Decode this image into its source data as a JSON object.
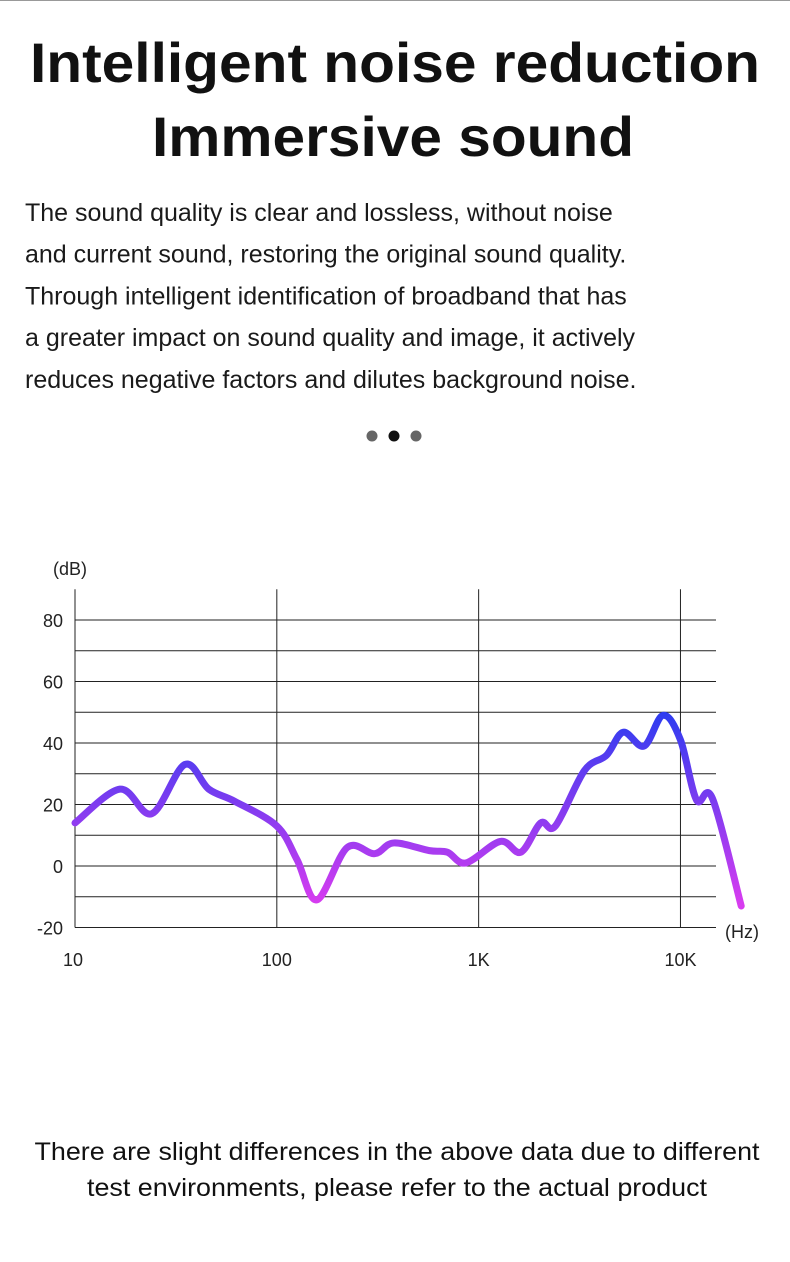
{
  "header": {
    "title_lines": [
      "Intelligent noise reduction",
      "Immersive sound"
    ],
    "paragraph_lines": [
      "The sound quality is clear and lossless, without noise",
      "and current sound, restoring the original sound quality.",
      "Through intelligent identification of broadband that has",
      "a greater impact on sound quality and image, it actively",
      "reduces negative factors and dilutes background noise."
    ]
  },
  "chart_data": {
    "type": "line",
    "y_label": "(dB)",
    "x_label": "(Hz)",
    "xscale": "log",
    "x": [
      10,
      16.7,
      24,
      35,
      46,
      62,
      100,
      126,
      158,
      223,
      305,
      380,
      570,
      700,
      865,
      1280,
      1620,
      2030,
      2400,
      3340,
      4300,
      5200,
      6600,
      8200,
      10000,
      12000,
      14400,
      20000
    ],
    "series": [
      {
        "colors": [
          "#2b3cf0",
          "#d83cf0"
        ],
        "values": [
          14,
          25,
          17,
          33,
          25,
          21,
          13,
          2,
          -11,
          6,
          4,
          7.5,
          5,
          4.5,
          1,
          8,
          4.5,
          14,
          13,
          31,
          36,
          43.5,
          39,
          49,
          41,
          21.5,
          22,
          -13
        ]
      }
    ],
    "xlim": [
      10,
      15000
    ],
    "ylim": [
      -20,
      90
    ],
    "xticks": [
      10,
      100,
      {
        "value": 1000,
        "label": "1K"
      },
      {
        "value": 10000,
        "label": "10K"
      }
    ],
    "yticks": [
      -20,
      0,
      20,
      40,
      60,
      80
    ],
    "minor_yticks": [
      -10,
      10,
      30,
      50,
      70
    ],
    "grid": true
  },
  "footer": {
    "lines": [
      "There are slight differences in the above data due to different",
      "test environments, please refer to the actual product"
    ]
  }
}
